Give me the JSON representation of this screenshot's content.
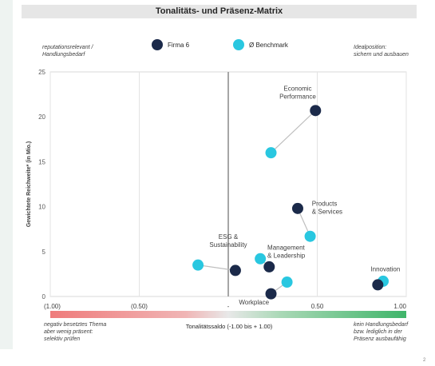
{
  "header": {
    "title": "Tonalitäts- und Präsenz-Matrix"
  },
  "notes": {
    "top_left": [
      "reputationsrelevant /",
      "Handlungsbedarf"
    ],
    "top_right": [
      "Idealposition:",
      "sichern und ausbauen"
    ],
    "bottom_left": [
      "negativ besetztes Thema",
      "aber wenig präsent:",
      "selektiv prüfen"
    ],
    "bottom_right": [
      "kein Handlungsbedarf",
      "bzw. lediglich in der",
      "Präsenz ausbaufähig"
    ]
  },
  "colors": {
    "firma": "#1b2a4a",
    "benchmark": "#29c7e0",
    "axis": "#a6a6a6",
    "connector": "#bfbfbf"
  },
  "page_number": "2",
  "chart_data": {
    "type": "scatter",
    "title": "Tonalitäts- und Präsenz-Matrix",
    "xlabel": "Tonalitätssaldo (-1.00 bis + 1.00)",
    "ylabel": "Gewichtete Reichweite* (in Mio.)",
    "xlim": [
      -1.0,
      1.0
    ],
    "ylim": [
      0,
      25
    ],
    "x_tick_labels": [
      "(1.00)",
      "(0.50)",
      "-",
      "0.50",
      "1.00"
    ],
    "x_tick_values": [
      -1.0,
      -0.5,
      0.0,
      0.5,
      1.0
    ],
    "y_ticks": [
      0,
      5,
      10,
      15,
      20,
      25
    ],
    "grid": "x-only",
    "legend_position": "top",
    "series": [
      {
        "name": "Firma 6",
        "points": [
          {
            "label": "Economic Performance",
            "x": 0.49,
            "y": 20.7
          },
          {
            "label": "Products & Services",
            "x": 0.39,
            "y": 9.8
          },
          {
            "label": "Management & Leadership",
            "x": 0.23,
            "y": 3.3
          },
          {
            "label": "ESG & Sustainability",
            "x": 0.04,
            "y": 2.9
          },
          {
            "label": "Workplace",
            "x": 0.24,
            "y": 0.3
          },
          {
            "label": "Innovation",
            "x": 0.84,
            "y": 1.3
          }
        ]
      },
      {
        "name": "Ø Benchmark",
        "points": [
          {
            "label": "Economic Performance",
            "x": 0.24,
            "y": 16.0
          },
          {
            "label": "Products & Services",
            "x": 0.46,
            "y": 6.7
          },
          {
            "label": "Management & Leadership",
            "x": 0.18,
            "y": 4.2
          },
          {
            "label": "ESG & Sustainability",
            "x": -0.17,
            "y": 3.5
          },
          {
            "label": "Workplace",
            "x": 0.33,
            "y": 1.6
          },
          {
            "label": "Innovation",
            "x": 0.87,
            "y": 1.7
          }
        ]
      }
    ],
    "annotations": [
      {
        "lines": [
          "Economic",
          "Performance"
        ],
        "x": 0.39,
        "y": 22.9,
        "anchor": "middle"
      },
      {
        "lines": [
          "Products",
          "& Services"
        ],
        "x": 0.47,
        "y": 10.1,
        "anchor": "start"
      },
      {
        "lines": [
          "ESG &",
          "Sustainability"
        ],
        "x": 0.0,
        "y": 6.4,
        "anchor": "middle"
      },
      {
        "lines": [
          "Management",
          "& Leadership"
        ],
        "x": 0.22,
        "y": 5.2,
        "anchor": "start"
      },
      {
        "lines": [
          "Innovation"
        ],
        "x": 0.8,
        "y": 2.8,
        "anchor": "start"
      },
      {
        "lines": [
          "Workplace"
        ],
        "x": 0.06,
        "y": -0.9,
        "anchor": "start"
      }
    ]
  }
}
